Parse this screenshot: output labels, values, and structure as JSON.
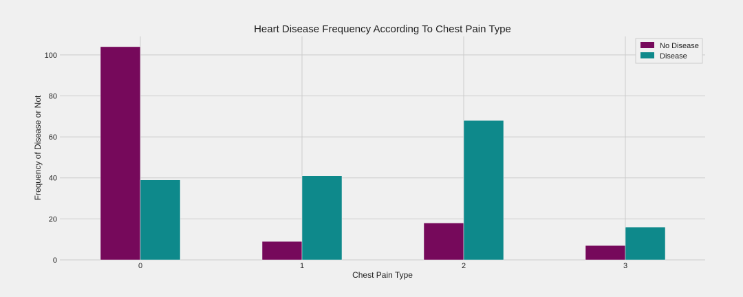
{
  "chart_data": {
    "type": "bar",
    "title": "Heart Disease Frequency According To Chest Pain Type",
    "xlabel": "Chest Pain Type",
    "ylabel": "Frequency of Disease or Not",
    "categories": [
      "0",
      "1",
      "2",
      "3"
    ],
    "series": [
      {
        "name": "No Disease",
        "values": [
          104,
          9,
          18,
          7
        ],
        "color": "#76095b"
      },
      {
        "name": "Disease",
        "values": [
          39,
          41,
          68,
          16
        ],
        "color": "#0e898b"
      }
    ],
    "ylim": [
      0,
      109
    ],
    "yticks": [
      0,
      20,
      40,
      60,
      80,
      100
    ],
    "grid": true,
    "legend_position": "top-right",
    "background_color": "#f0f0f0",
    "grid_color": "#cbcbcb"
  }
}
